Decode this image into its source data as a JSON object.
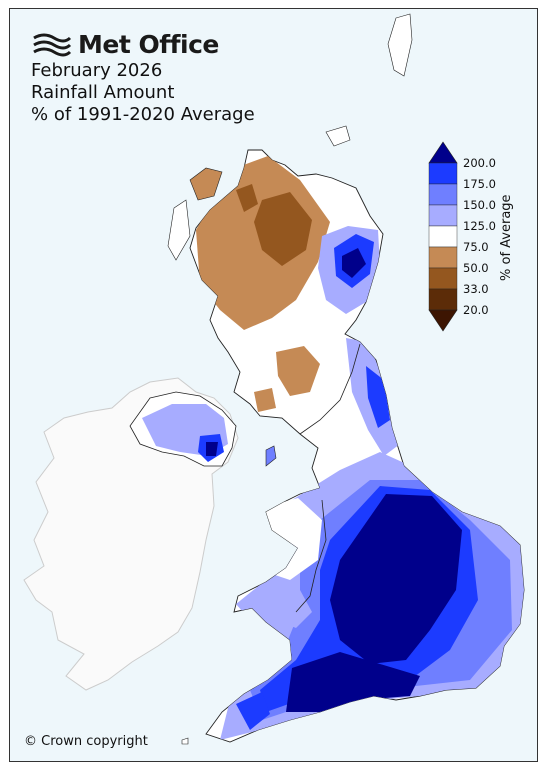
{
  "brand": {
    "name": "Met Office",
    "logo_icon": "met-office-swirl-icon"
  },
  "titles": [
    "February 2026",
    "Rainfall Amount",
    "% of 1991-2020 Average"
  ],
  "legend": {
    "axis_label": "% of Average",
    "tick_labels": [
      "200.0",
      "175.0",
      "150.0",
      "125.0",
      "75.0",
      "50.0",
      "33.0",
      "20.0"
    ],
    "bins": [
      {
        "range": "> 200",
        "color": "#00008b"
      },
      {
        "range": "175-200",
        "color": "#1c3bff"
      },
      {
        "range": "150-175",
        "color": "#6f7fff"
      },
      {
        "range": "125-150",
        "color": "#a7acff"
      },
      {
        "range": "75-125",
        "color": "#ffffff"
      },
      {
        "range": "50-75",
        "color": "#c58a55"
      },
      {
        "range": "33-50",
        "color": "#94571f"
      },
      {
        "range": "20-33",
        "color": "#5c2c08"
      },
      {
        "range": "< 20",
        "color": "#3d1502"
      }
    ]
  },
  "colors": {
    "background": "#eef7fb",
    "land_normal": "#ffffff",
    "ireland": "#fafafa"
  },
  "copyright": "© Crown copyright"
}
